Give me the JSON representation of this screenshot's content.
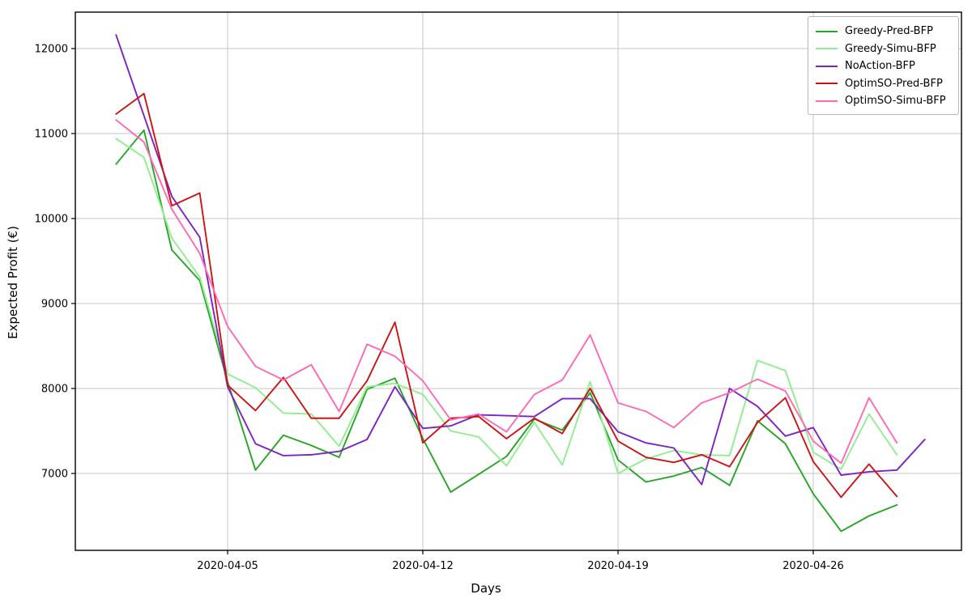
{
  "chart_data": {
    "type": "line",
    "title": "",
    "xlabel": "Days",
    "ylabel": "Expected Profit (€)",
    "grid": true,
    "legend_position": "upper right",
    "x_unit": "date (April 2020, daily points)",
    "x_tick_labels": [
      "2020-04-05",
      "2020-04-12",
      "2020-04-19",
      "2020-04-26"
    ],
    "x_tick_days": [
      5,
      12,
      19,
      26
    ],
    "y_tick_labels": [
      "7000",
      "8000",
      "9000",
      "10000",
      "11000",
      "12000"
    ],
    "y_ticks": [
      7000,
      8000,
      9000,
      10000,
      11000,
      12000
    ],
    "ylim": [
      6100,
      12430
    ],
    "xlim_days": [
      -0.5,
      31.3
    ],
    "series": [
      {
        "name": "Greedy-Pred-BFP",
        "color": "#26a626",
        "start_day": 1,
        "values": [
          10640,
          11040,
          9630,
          9270,
          8080,
          7040,
          7450,
          7330,
          7190,
          7990,
          8120,
          7410,
          6780,
          6990,
          7200,
          7640,
          7510,
          7950,
          7160,
          6900,
          6970,
          7070,
          6860,
          7620,
          7350,
          6760,
          6320,
          6500,
          6630
        ]
      },
      {
        "name": "Greedy-Simu-BFP",
        "color": "#90ee90",
        "start_day": 1,
        "values": [
          10940,
          10720,
          9770,
          9310,
          8170,
          8010,
          7710,
          7700,
          7320,
          8020,
          8060,
          7930,
          7500,
          7430,
          7090,
          7600,
          7100,
          8080,
          7000,
          7170,
          7270,
          7220,
          7210,
          8330,
          8210,
          7250,
          7050,
          7700,
          7220
        ]
      },
      {
        "name": "NoAction-BFP",
        "color": "#7d22c3",
        "start_day": 1,
        "values": [
          12160,
          11210,
          10260,
          9780,
          8020,
          7350,
          7210,
          7220,
          7260,
          7400,
          8020,
          7530,
          7560,
          7690,
          7680,
          7670,
          7880,
          7880,
          7490,
          7360,
          7300,
          6870,
          8000,
          7790,
          7440,
          7540,
          6980,
          7020,
          7040,
          7400
        ]
      },
      {
        "name": "OptimSO-Pred-BFP",
        "color": "#cc1414",
        "start_day": 1,
        "values": [
          11230,
          11470,
          10150,
          10300,
          8040,
          7740,
          8130,
          7650,
          7650,
          8090,
          8780,
          7360,
          7650,
          7670,
          7410,
          7650,
          7470,
          8000,
          7380,
          7190,
          7130,
          7220,
          7080,
          7600,
          7890,
          7140,
          6720,
          7110,
          6730
        ]
      },
      {
        "name": "OptimSO-Simu-BFP",
        "color": "#ff69b4",
        "start_day": 1,
        "values": [
          11160,
          10900,
          10110,
          9590,
          8730,
          8260,
          8100,
          8280,
          7730,
          8520,
          8380,
          8090,
          7630,
          7700,
          7490,
          7930,
          8100,
          8630,
          7830,
          7730,
          7540,
          7830,
          7950,
          8110,
          7970,
          7380,
          7120,
          7890,
          7360
        ]
      }
    ]
  }
}
